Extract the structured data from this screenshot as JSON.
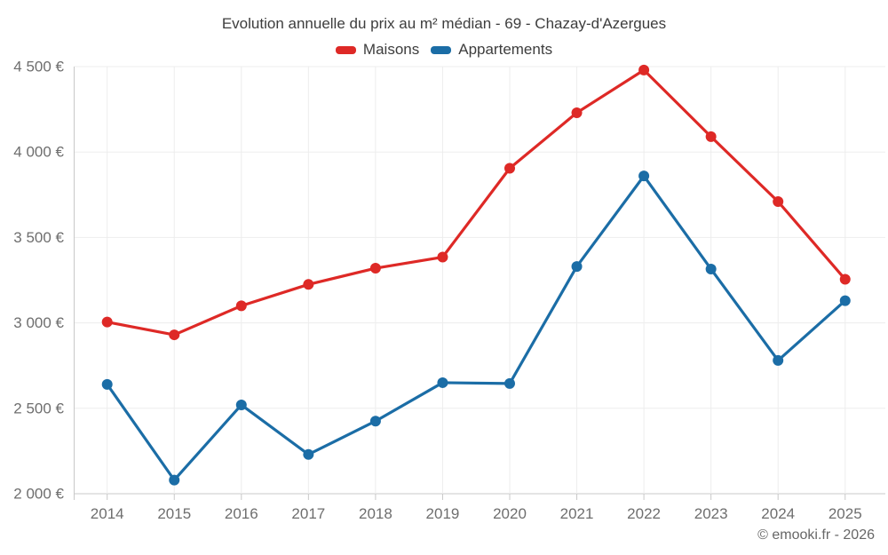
{
  "chart": {
    "title": "Evolution annuelle du prix au m² médian - 69 - Chazay-d'Azergues",
    "legend": {
      "maisons": "Maisons",
      "appartements": "Appartements"
    }
  },
  "footer": {
    "copyright": "© emooki.fr - 2026"
  },
  "colors": {
    "maisons": "#de2926",
    "appartements": "#1b6da6",
    "title_text": "#3d3d3d",
    "axis_label_text": "#6e6e6e",
    "gridline": "#ededed",
    "axis_line": "#c8c8c8"
  },
  "chart_data": {
    "type": "line",
    "title": "Evolution annuelle du prix au m² médian - 69 - Chazay-d'Azergues",
    "categories": [
      "2014",
      "2015",
      "2016",
      "2017",
      "2018",
      "2019",
      "2020",
      "2021",
      "2022",
      "2023",
      "2024",
      "2025"
    ],
    "series": [
      {
        "name": "Maisons",
        "color": "#de2926",
        "values": [
          3005,
          2930,
          3100,
          3225,
          3320,
          3385,
          3905,
          4230,
          4480,
          4090,
          3710,
          3255
        ]
      },
      {
        "name": "Appartements",
        "color": "#1b6da6",
        "values": [
          2640,
          2080,
          2520,
          2230,
          2425,
          2650,
          2645,
          3330,
          3860,
          3315,
          2780,
          3130
        ]
      }
    ],
    "xlabel": "",
    "ylabel": "",
    "ylim": [
      2000,
      4500
    ],
    "y_ticks": [
      4500,
      4000,
      3500,
      3000,
      2500,
      2000
    ],
    "y_tick_labels": [
      "4 500 €",
      "4 000 €",
      "3 500 €",
      "3 000 €",
      "2 500 €",
      "2 000 €"
    ],
    "grid": true,
    "legend_position": "top",
    "unit": "€"
  }
}
